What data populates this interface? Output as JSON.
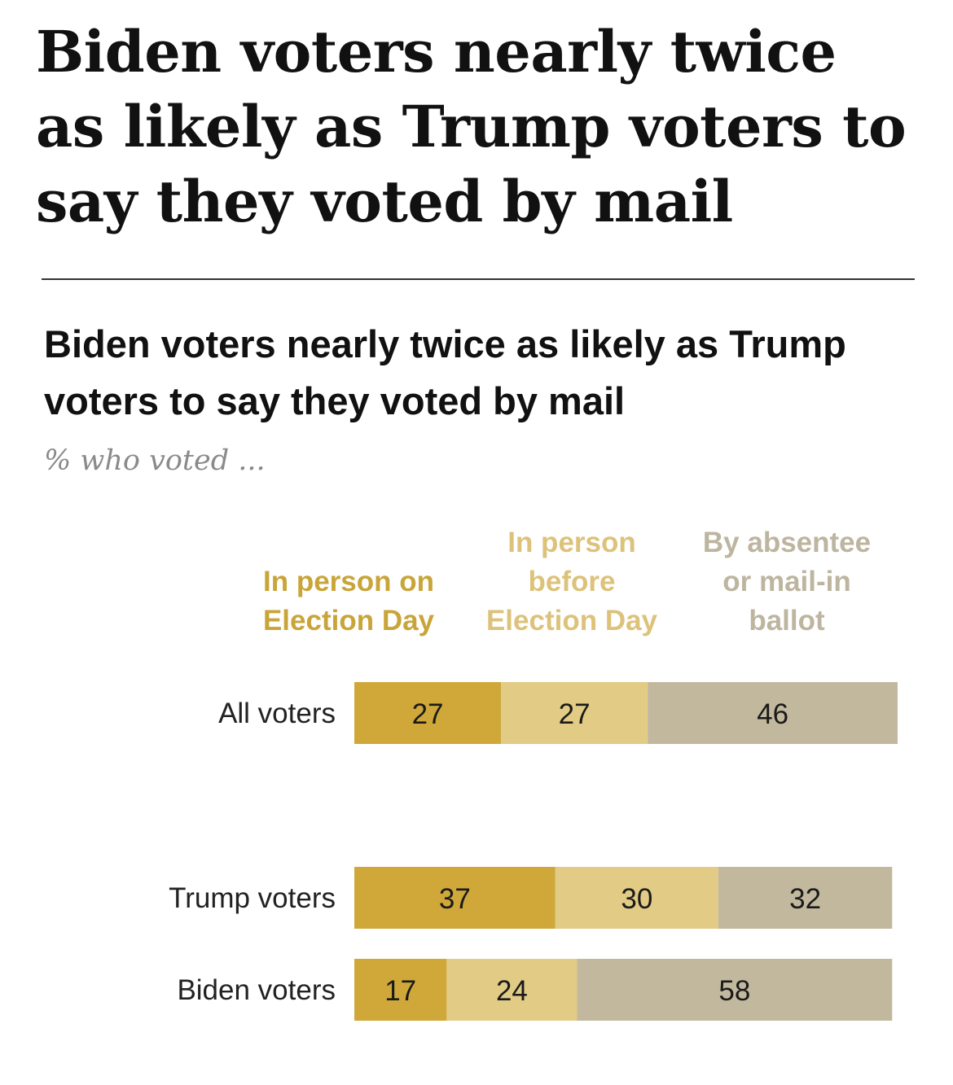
{
  "headline": "Biden voters nearly twice as likely as Trump voters to say they voted by mail",
  "chart_data": {
    "type": "bar",
    "orientation": "horizontal",
    "stacked": true,
    "title": "Biden voters nearly twice as likely as Trump voters to say they voted by mail",
    "subtitle": "% who voted ...",
    "categories": [
      "All voters",
      "Trump voters",
      "Biden voters"
    ],
    "series": [
      {
        "name": "In person on Election Day",
        "name_lines": [
          "In person on",
          "Election Day"
        ],
        "color": "#cfa839",
        "legend_color": "#c9a539",
        "values": [
          27,
          37,
          17
        ]
      },
      {
        "name": "In person before Election Day",
        "name_lines": [
          "In person",
          "before",
          "Election Day"
        ],
        "color": "#e2cb85",
        "legend_color": "#dcc27a",
        "values": [
          27,
          30,
          24
        ]
      },
      {
        "name": "By absentee or mail-in ballot",
        "name_lines": [
          "By absentee",
          "or mail-in",
          "ballot"
        ],
        "color": "#c2b89e",
        "legend_color": "#bdb5a0",
        "values": [
          46,
          32,
          58
        ]
      }
    ],
    "xlim": [
      0,
      100
    ],
    "grid": false,
    "legend": "top"
  }
}
